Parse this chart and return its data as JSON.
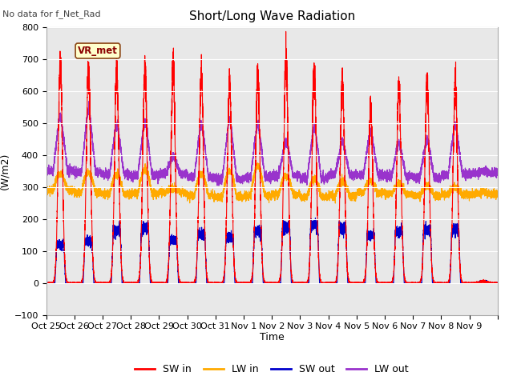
{
  "title": "Short/Long Wave Radiation",
  "xlabel": "Time",
  "ylabel": "(W/m2)",
  "ylim": [
    -100,
    800
  ],
  "yticks": [
    -100,
    0,
    100,
    200,
    300,
    400,
    500,
    600,
    700,
    800
  ],
  "background_color": "#e8e8e8",
  "fig_color": "#ffffff",
  "colors": {
    "SW_in": "#ff0000",
    "LW_in": "#ffaa00",
    "SW_out": "#0000cc",
    "LW_out": "#9933cc"
  },
  "watermark_text": "VR_met",
  "note_text": "No data for f_Net_Rad",
  "x_tick_labels": [
    "Oct 25",
    "Oct 26",
    "Oct 27",
    "Oct 28",
    "Oct 29",
    "Oct 30",
    "Oct 31",
    "Nov 1",
    "Nov 2",
    "Nov 3",
    "Nov 4",
    "Nov 5",
    "Nov 6",
    "Nov 7",
    "Nov 8",
    "Nov 9"
  ],
  "legend_labels": [
    "SW in",
    "LW in",
    "SW out",
    "LW out"
  ],
  "SW_in_peaks": [
    675,
    670,
    660,
    670,
    675,
    650,
    630,
    645,
    705,
    665,
    635,
    550,
    615,
    625,
    625,
    5
  ],
  "LW_in_night": [
    290,
    283,
    278,
    278,
    283,
    273,
    268,
    272,
    277,
    268,
    272,
    282,
    277,
    272,
    277,
    277
  ],
  "LW_in_day_peak": [
    340,
    345,
    340,
    355,
    295,
    340,
    350,
    365,
    335,
    325,
    318,
    318,
    312,
    302,
    298,
    285
  ],
  "LW_out_night": [
    350,
    345,
    340,
    335,
    340,
    330,
    325,
    330,
    335,
    325,
    338,
    338,
    333,
    328,
    338,
    342
  ],
  "LW_out_day_peak": [
    480,
    495,
    460,
    465,
    383,
    458,
    467,
    458,
    418,
    447,
    418,
    442,
    412,
    418,
    457,
    350
  ],
  "SW_out_peaks": [
    120,
    130,
    165,
    170,
    135,
    150,
    140,
    160,
    175,
    180,
    170,
    150,
    160,
    165,
    165,
    5
  ],
  "days": 16,
  "pts_per_day": 480
}
